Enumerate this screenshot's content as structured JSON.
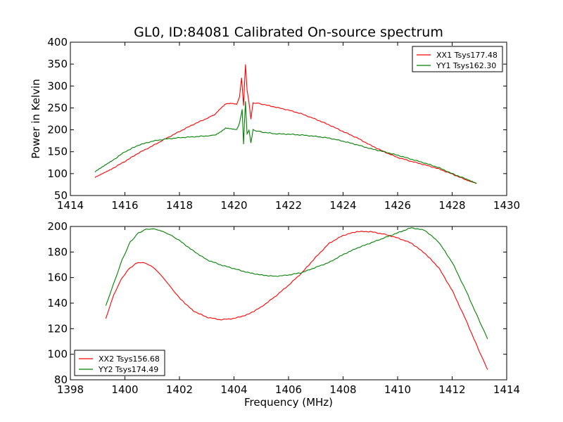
{
  "figure": {
    "title": "GL0, ID:84081 Calibrated On-source spectrum"
  },
  "chart_data": [
    {
      "type": "line",
      "title": "GL0, ID:84081 Calibrated On-source spectrum",
      "xlabel": "",
      "ylabel": "Power in Kelvin",
      "xlim": [
        1414,
        1430
      ],
      "ylim": [
        50,
        400
      ],
      "xticks": [
        "1414",
        "1416",
        "1418",
        "1420",
        "1422",
        "1424",
        "1426",
        "1428",
        "1430"
      ],
      "yticks": [
        "50",
        "100",
        "150",
        "200",
        "250",
        "300",
        "350",
        "400"
      ],
      "grid": false,
      "legend": "top-right",
      "series": [
        {
          "name": "XX1 Tsys177.48",
          "color": "#ff0000",
          "x": [
            1414.9,
            1415.5,
            1416.0,
            1416.5,
            1417.0,
            1417.5,
            1418.0,
            1418.5,
            1419.0,
            1419.3,
            1419.5,
            1419.7,
            1419.9,
            1420.1,
            1420.2,
            1420.28,
            1420.35,
            1420.42,
            1420.48,
            1420.55,
            1420.62,
            1420.7,
            1421.0,
            1421.5,
            1422.0,
            1422.5,
            1423.0,
            1423.5,
            1424.0,
            1424.5,
            1425.0,
            1425.5,
            1426.0,
            1426.5,
            1427.0,
            1427.5,
            1428.0,
            1428.5,
            1428.9
          ],
          "y": [
            91,
            110,
            128,
            147,
            163,
            180,
            196,
            212,
            226,
            235,
            248,
            259,
            260,
            258,
            275,
            318,
            255,
            350,
            290,
            262,
            225,
            262,
            259,
            252,
            245,
            236,
            224,
            211,
            196,
            182,
            165,
            150,
            137,
            128,
            120,
            111,
            99,
            86,
            78
          ]
        },
        {
          "name": "YY1 Tsys162.30",
          "color": "#008000",
          "x": [
            1414.9,
            1415.5,
            1416.0,
            1416.5,
            1417.0,
            1417.5,
            1418.0,
            1418.5,
            1419.0,
            1419.3,
            1419.5,
            1419.7,
            1419.9,
            1420.1,
            1420.2,
            1420.3,
            1420.35,
            1420.42,
            1420.48,
            1420.55,
            1420.62,
            1420.7,
            1421.0,
            1421.5,
            1422.0,
            1422.5,
            1423.0,
            1423.5,
            1424.0,
            1424.5,
            1425.0,
            1425.5,
            1426.0,
            1426.5,
            1427.0,
            1427.5,
            1428.0,
            1428.5,
            1428.9
          ],
          "y": [
            104,
            128,
            150,
            165,
            174,
            179,
            182,
            184,
            186,
            188,
            195,
            204,
            202,
            200,
            215,
            246,
            168,
            265,
            190,
            200,
            170,
            200,
            195,
            191,
            190,
            188,
            185,
            181,
            174,
            166,
            157,
            150,
            142,
            133,
            124,
            114,
            100,
            88,
            78
          ]
        }
      ]
    },
    {
      "type": "line",
      "title": "",
      "xlabel": "Frequency (MHz)",
      "ylabel": "",
      "xlim": [
        1398,
        1414
      ],
      "ylim": [
        80,
        200
      ],
      "xticks": [
        "1398",
        "1400",
        "1402",
        "1404",
        "1406",
        "1408",
        "1410",
        "1412",
        "1414"
      ],
      "yticks": [
        "80",
        "100",
        "120",
        "140",
        "160",
        "180",
        "200"
      ],
      "grid": false,
      "legend": "bottom-left",
      "series": [
        {
          "name": "XX2 Tsys156.68",
          "color": "#ff0000",
          "x": [
            1399.3,
            1399.6,
            1399.9,
            1400.2,
            1400.5,
            1400.8,
            1401.1,
            1401.4,
            1401.7,
            1402.0,
            1402.5,
            1403.0,
            1403.5,
            1404.0,
            1404.5,
            1405.0,
            1405.5,
            1406.0,
            1406.5,
            1407.0,
            1407.5,
            1408.0,
            1408.5,
            1409.0,
            1409.5,
            1410.0,
            1410.5,
            1411.0,
            1411.5,
            1412.0,
            1412.5,
            1413.0,
            1413.3
          ],
          "y": [
            128,
            147,
            160,
            168,
            172,
            171,
            167,
            160,
            152,
            144,
            134,
            129,
            127,
            128,
            131,
            137,
            145,
            154,
            164,
            176,
            187,
            193,
            196,
            196,
            194,
            191,
            187,
            179,
            168,
            150,
            127,
            102,
            88
          ]
        },
        {
          "name": "YY2 Tsys174.49",
          "color": "#008000",
          "x": [
            1399.3,
            1399.6,
            1399.9,
            1400.2,
            1400.5,
            1400.8,
            1401.1,
            1401.4,
            1401.7,
            1402.0,
            1402.5,
            1403.0,
            1403.5,
            1404.0,
            1404.5,
            1405.0,
            1405.5,
            1406.0,
            1406.5,
            1407.0,
            1407.5,
            1408.0,
            1408.5,
            1409.0,
            1409.5,
            1410.0,
            1410.5,
            1411.0,
            1411.5,
            1412.0,
            1412.5,
            1413.0,
            1413.3
          ],
          "y": [
            138,
            156,
            174,
            188,
            195,
            198,
            198,
            196,
            193,
            189,
            181,
            174,
            170,
            167,
            164,
            162,
            161,
            162,
            164,
            168,
            172,
            178,
            183,
            187,
            191,
            195,
            199,
            197,
            188,
            172,
            150,
            126,
            112
          ]
        }
      ]
    }
  ]
}
